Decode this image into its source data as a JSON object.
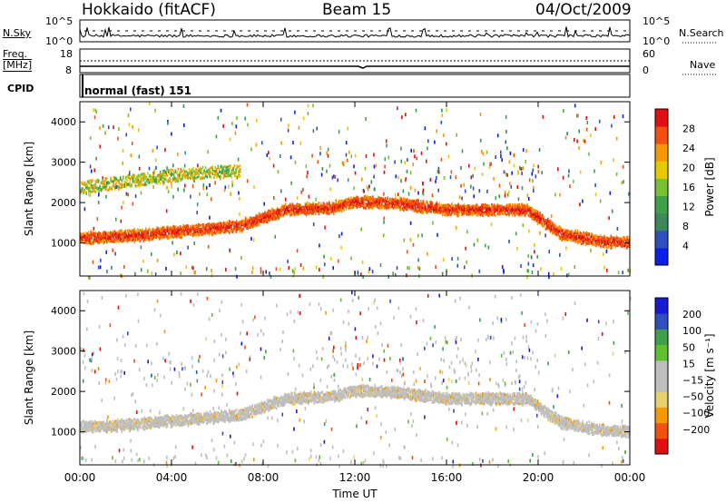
{
  "header": {
    "radar": "Hokkaido (fitACF)",
    "beam": "Beam 15",
    "date": "04/Oct/2009"
  },
  "status_panels": {
    "nsky": {
      "label": "N.Sky",
      "ticks": [
        "10^5",
        "10^0"
      ]
    },
    "nsearch": {
      "label": "N.Search"
    },
    "freq": {
      "label_line1": "Freq.",
      "label_line2": "[MHz]",
      "ticks": [
        "18",
        "8"
      ]
    },
    "nave": {
      "label": "Nave",
      "ticks": [
        "60",
        "0"
      ]
    },
    "cpid": {
      "label": "CPID",
      "value": "normal (fast) 151"
    }
  },
  "chart_data": [
    {
      "type": "heatmap",
      "name_key": "power",
      "x": {
        "label": "Time UT",
        "range": [
          0,
          24
        ],
        "tick_labels": [
          "00:00",
          "04:00",
          "08:00",
          "12:00",
          "16:00",
          "20:00",
          "00:00"
        ]
      },
      "ylabel": "Slant Range [km]",
      "ylim": [
        180,
        4500
      ],
      "y_ticks": [
        1000,
        2000,
        3000,
        4000
      ],
      "colorbar": {
        "label": "Power [dB]",
        "ticks": [
          4,
          8,
          12,
          16,
          20,
          24,
          28
        ],
        "range": [
          0,
          32
        ],
        "colors": [
          "#0b1fe6",
          "#2f4fc0",
          "#3c8a5a",
          "#3f9f4a",
          "#78c030",
          "#e8c800",
          "#f49a00",
          "#f05010",
          "#e01010"
        ]
      },
      "features": [
        {
          "desc": "main F-region echo band",
          "t": [
            0,
            2,
            4,
            6,
            7,
            8,
            9,
            11,
            12,
            14,
            16,
            18,
            19.5,
            21,
            23,
            24
          ],
          "range_km": [
            1150,
            1200,
            1300,
            1400,
            1450,
            1650,
            1850,
            1900,
            2050,
            2000,
            1850,
            1850,
            1850,
            1250,
            1050,
            1050
          ],
          "power_db": 26
        },
        {
          "desc": "upper band",
          "t": [
            0,
            2,
            4,
            6,
            7
          ],
          "range_km": [
            2400,
            2550,
            2700,
            2800,
            2800
          ],
          "power_db": 18
        }
      ]
    },
    {
      "type": "heatmap",
      "name_key": "velocity",
      "x": {
        "label": "Time UT",
        "range": [
          0,
          24
        ],
        "tick_labels": [
          "00:00",
          "04:00",
          "08:00",
          "12:00",
          "16:00",
          "20:00",
          "00:00"
        ]
      },
      "ylabel": "Slant Range [km]",
      "ylim": [
        180,
        4500
      ],
      "y_ticks": [
        1000,
        2000,
        3000,
        4000
      ],
      "colorbar": {
        "label": "Velocity [m s⁻¹]",
        "ticks": [
          200,
          100,
          50,
          15,
          -15,
          -50,
          -100,
          -200
        ],
        "range": [
          -250,
          250
        ],
        "colors": [
          "#e01010",
          "#f05010",
          "#f49a00",
          "#e8d06a",
          "#bebebe",
          "#bebebe",
          "#60c030",
          "#3f9f4a",
          "#2f4fc0",
          "#1a1ad0"
        ]
      },
      "features": [
        {
          "desc": "ground scatter band",
          "t": [
            0,
            2,
            4,
            6,
            7,
            8,
            9,
            11,
            12,
            14,
            16,
            18,
            19.5,
            21,
            23,
            24
          ],
          "range_km": [
            1150,
            1200,
            1300,
            1400,
            1450,
            1650,
            1850,
            1900,
            2050,
            2000,
            1850,
            1850,
            1850,
            1250,
            1050,
            1050
          ],
          "velocity_ms": 0
        }
      ]
    }
  ]
}
